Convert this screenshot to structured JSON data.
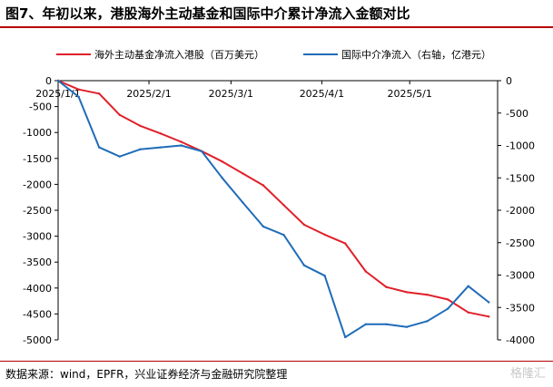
{
  "header": {
    "title": "图7、年初以来，港股海外主动基金和国际中介累计净流入金额对比"
  },
  "footer": {
    "source": "数据来源：wind，EPFR，兴业证券经济与金融研究院整理",
    "watermark": "格隆汇"
  },
  "colors": {
    "series_left": "#e0202a",
    "series_right": "#1f6cb8",
    "rule": "#b40000"
  },
  "chart_data": {
    "type": "line",
    "title": "",
    "xlabel": "",
    "ylabel": "",
    "x_ticks": [
      "2025/1/1",
      "2025/2/1",
      "2025/3/1",
      "2025/4/1",
      "2025/5/1"
    ],
    "x_tick_days": [
      0,
      31,
      59,
      90,
      120
    ],
    "x_range_days": [
      0,
      150
    ],
    "ylim_left": [
      -5000,
      0
    ],
    "yticks_left": [
      0,
      -500,
      -1000,
      -1500,
      -2000,
      -2500,
      -3000,
      -3500,
      -4000,
      -4500,
      -5000
    ],
    "ylim_right": [
      -4000,
      0
    ],
    "yticks_right": [
      0,
      -500,
      -1000,
      -1500,
      -2000,
      -2500,
      -3000,
      -3500,
      -4000
    ],
    "legend_position": "top",
    "series": [
      {
        "name": "海外主动基金净流入港股（百万美元）",
        "axis": "left",
        "color": "#e0202a",
        "x_days": [
          0,
          7,
          14,
          21,
          28,
          35,
          42,
          49,
          56,
          63,
          70,
          77,
          84,
          91,
          98,
          105,
          112,
          119,
          126,
          133,
          140,
          147
        ],
        "values": [
          0,
          -170,
          -250,
          -660,
          -870,
          -1020,
          -1180,
          -1360,
          -1560,
          -1790,
          -2020,
          -2400,
          -2780,
          -2970,
          -3140,
          -3680,
          -3980,
          -4080,
          -4130,
          -4220,
          -4470,
          -4550
        ]
      },
      {
        "name": "国际中介净流入（右轴，亿港元）",
        "axis": "right",
        "color": "#1f6cb8",
        "x_days": [
          0,
          7,
          14,
          21,
          28,
          35,
          42,
          49,
          56,
          63,
          70,
          77,
          84,
          91,
          98,
          105,
          112,
          119,
          126,
          133,
          140,
          147
        ],
        "values": [
          0,
          -250,
          -1030,
          -1170,
          -1060,
          -1030,
          -1000,
          -1090,
          -1500,
          -1880,
          -2250,
          -2380,
          -2850,
          -3010,
          -3960,
          -3760,
          -3760,
          -3800,
          -3710,
          -3520,
          -3170,
          -3420
        ]
      }
    ]
  }
}
